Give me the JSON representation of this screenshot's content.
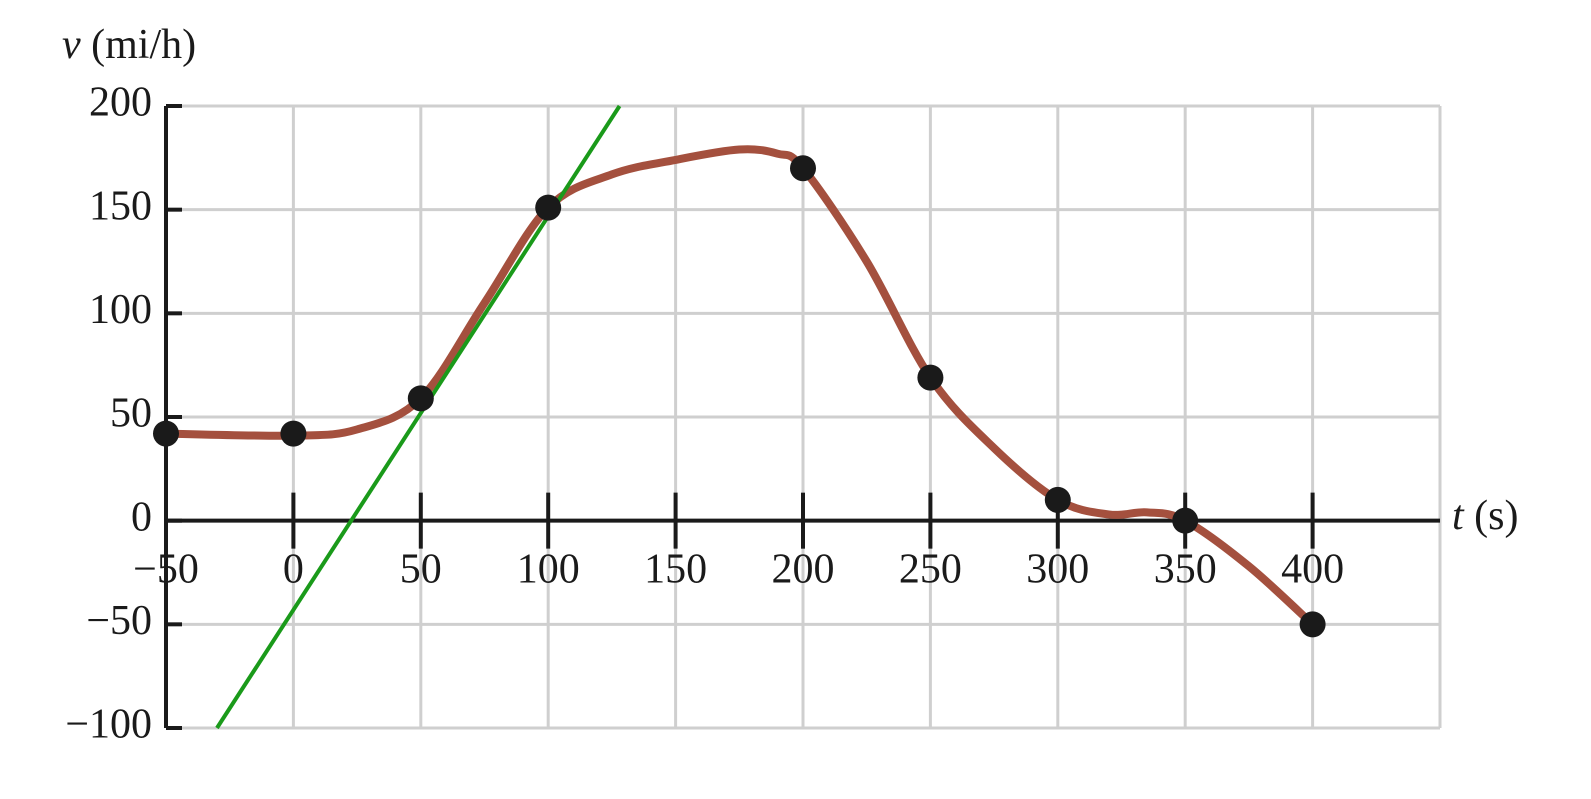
{
  "chart_data": {
    "type": "line",
    "ylabel": {
      "symbol": "v",
      "unit": "(mi/h)"
    },
    "xlabel": {
      "symbol": "t",
      "unit": "(s)"
    },
    "xlim": [
      -50,
      450
    ],
    "ylim": [
      -100,
      200
    ],
    "xticks": [
      {
        "value": -50,
        "label": "−50"
      },
      0,
      50,
      100,
      150,
      200,
      250,
      300,
      350,
      400
    ],
    "yticks": [
      {
        "value": -100,
        "label": "−100"
      },
      {
        "value": -50,
        "label": "−50"
      },
      0,
      50,
      100,
      150,
      200
    ],
    "grid": true,
    "x": [
      -50,
      0,
      50,
      100,
      200,
      250,
      300,
      350,
      400
    ],
    "series": [
      {
        "color": "#1a1a1a",
        "values": [
          42,
          42,
          59,
          151,
          170,
          69,
          10,
          0,
          -50
        ]
      }
    ],
    "curve": {
      "color": "#a4503e",
      "x": [
        -50,
        0,
        25,
        50,
        75,
        100,
        125,
        150,
        175,
        190,
        200,
        225,
        250,
        275,
        300,
        320,
        335,
        350,
        375,
        400
      ],
      "values": [
        42,
        41,
        44,
        59,
        105,
        151,
        167,
        174,
        179,
        177,
        170,
        125,
        69,
        35,
        10,
        3,
        4,
        0,
        -22,
        -50
      ]
    },
    "tangent": {
      "color": "#1a9a1a",
      "x": [
        -30,
        128
      ],
      "values": [
        -100,
        200
      ]
    }
  }
}
